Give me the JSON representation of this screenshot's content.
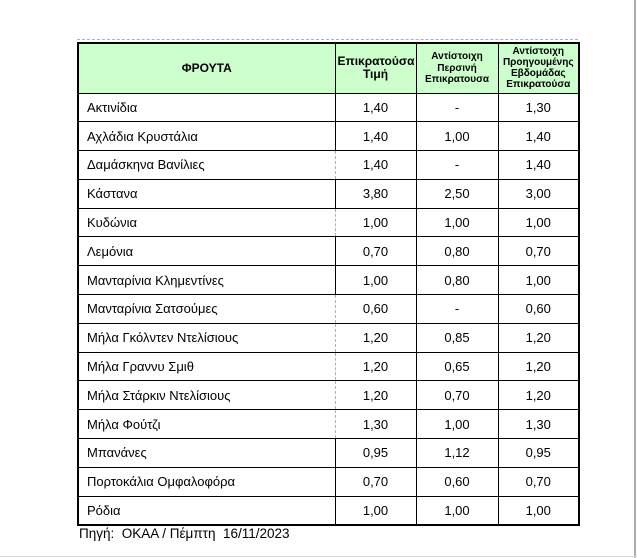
{
  "table": {
    "columns": [
      "ΦΡΟΥΤΑ",
      "Επικρατούσα Τιμή",
      "Αντίστοιχη Περσινή Επικρατουσα",
      "Αντίστοιχη Προηγουμένης Εβδομάδας Επικρατούσα"
    ],
    "rows": [
      {
        "name": "Ακτινίδια",
        "current": "1,40",
        "last_year": "-",
        "prev_week": "1,30"
      },
      {
        "name": "Αχλάδια Κρυστάλια",
        "current": "1,40",
        "last_year": "1,00",
        "prev_week": "1,40"
      },
      {
        "name": "Δαμάσκηνα Βανίλιες",
        "current": "1,40",
        "last_year": "-",
        "prev_week": "1,40"
      },
      {
        "name": "Κάστανα",
        "current": "3,80",
        "last_year": "2,50",
        "prev_week": "3,00"
      },
      {
        "name": "Κυδώνια",
        "current": "1,00",
        "last_year": "1,00",
        "prev_week": "1,00"
      },
      {
        "name": "Λεμόνια",
        "current": "0,70",
        "last_year": "0,80",
        "prev_week": "0,70"
      },
      {
        "name": "Μανταρίνια Κλημεντίνες",
        "current": "1,00",
        "last_year": "0,80",
        "prev_week": "1,00"
      },
      {
        "name": "Μανταρίνια Σατσούμες",
        "current": "0,60",
        "last_year": "-",
        "prev_week": "0,60"
      },
      {
        "name": "Μήλα Γκόλντεν Ντελίσιους",
        "current": "1,20",
        "last_year": "0,85",
        "prev_week": "1,20"
      },
      {
        "name": "Μήλα Γραννυ Σμιθ",
        "current": "1,20",
        "last_year": "0,65",
        "prev_week": "1,20"
      },
      {
        "name": "Μήλα Στάρκιν Ντελίσιους",
        "current": "1,20",
        "last_year": "0,70",
        "prev_week": "1,20"
      },
      {
        "name": "Μήλα Φούτζι",
        "current": "1,30",
        "last_year": "1,00",
        "prev_week": "1,30"
      },
      {
        "name": "Μπανάνες",
        "current": "0,95",
        "last_year": "1,12",
        "prev_week": "0,95"
      },
      {
        "name": "Πορτοκάλια Ομφαλοφόρα",
        "current": "0,70",
        "last_year": "0,60",
        "prev_week": "0,70"
      },
      {
        "name": "Ρόδια",
        "current": "1,00",
        "last_year": "1,00",
        "prev_week": "1,00"
      }
    ],
    "dashed_border_rows": [
      3,
      5,
      8,
      9,
      10,
      11,
      12
    ],
    "header_bg": "#ccffcc",
    "border_color": "#000000",
    "pagebreak_color": "#9fb4ca"
  },
  "footer": {
    "source": "Πηγή:  ΟΚΑΑ / Πέμπτη  16/11/2023"
  }
}
